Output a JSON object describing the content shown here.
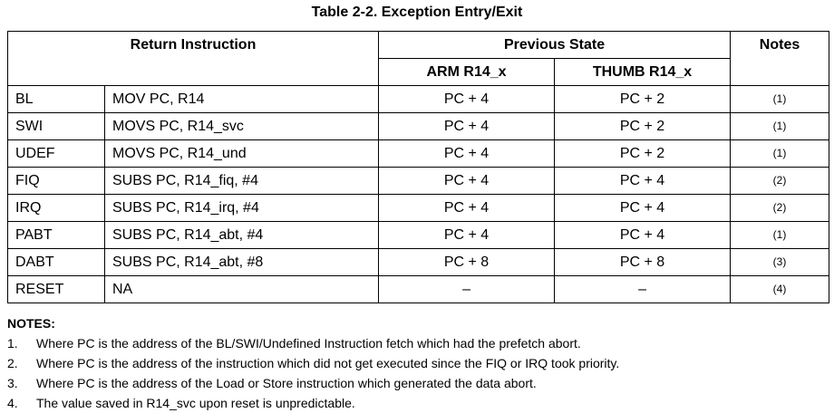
{
  "title": "Table 2-2. Exception Entry/Exit",
  "headers": {
    "return_instruction": "Return Instruction",
    "previous_state": "Previous State",
    "notes": "Notes",
    "arm": "ARM R14_x",
    "thumb": "THUMB R14_x"
  },
  "rows": [
    {
      "exception": "BL",
      "instruction": "MOV PC, R14",
      "arm": "PC + 4",
      "thumb": "PC + 2",
      "note": "(1)"
    },
    {
      "exception": "SWI",
      "instruction": "MOVS PC, R14_svc",
      "arm": "PC + 4",
      "thumb": "PC + 2",
      "note": "(1)"
    },
    {
      "exception": "UDEF",
      "instruction": "MOVS PC, R14_und",
      "arm": "PC + 4",
      "thumb": "PC + 2",
      "note": "(1)"
    },
    {
      "exception": "FIQ",
      "instruction": "SUBS PC, R14_fiq, #4",
      "arm": "PC + 4",
      "thumb": "PC + 4",
      "note": "(2)"
    },
    {
      "exception": "IRQ",
      "instruction": "SUBS PC, R14_irq, #4",
      "arm": "PC + 4",
      "thumb": "PC + 4",
      "note": "(2)"
    },
    {
      "exception": "PABT",
      "instruction": "SUBS PC, R14_abt, #4",
      "arm": "PC + 4",
      "thumb": "PC + 4",
      "note": "(1)"
    },
    {
      "exception": "DABT",
      "instruction": "SUBS PC, R14_abt, #8",
      "arm": "PC + 8",
      "thumb": "PC + 8",
      "note": "(3)"
    },
    {
      "exception": "RESET",
      "instruction": "NA",
      "arm": "–",
      "thumb": "–",
      "note": "(4)"
    }
  ],
  "notes": {
    "heading": "NOTES:",
    "items": [
      {
        "num": "1.",
        "text": "Where PC is the address of the BL/SWI/Undefined Instruction fetch which had the prefetch abort."
      },
      {
        "num": "2.",
        "text": "Where PC is the address of the instruction which did not get executed since the FIQ or IRQ took priority."
      },
      {
        "num": "3.",
        "text": "Where PC is the address of the Load or Store instruction which generated the data abort."
      },
      {
        "num": "4.",
        "text": "The value saved in R14_svc upon reset is unpredictable."
      }
    ]
  }
}
